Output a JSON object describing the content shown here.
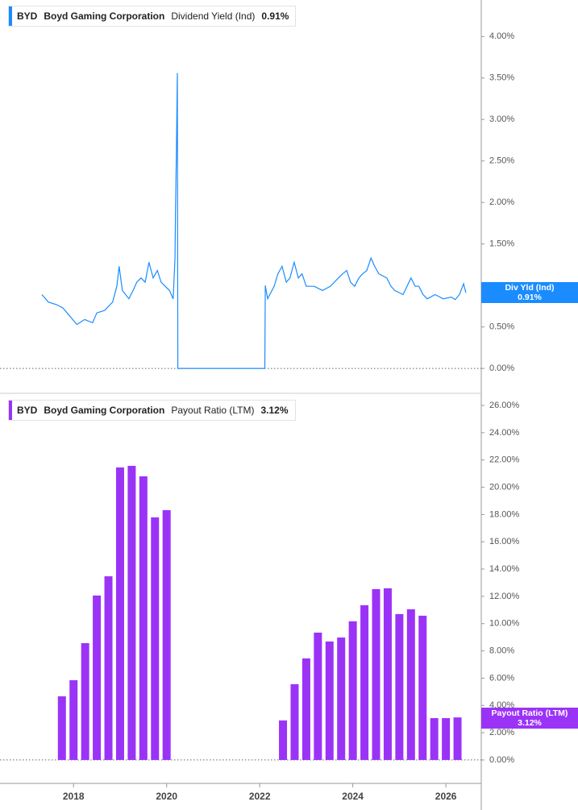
{
  "chart_data": [
    {
      "type": "line",
      "header": {
        "ticker": "BYD",
        "company": "Boyd Gaming Corporation",
        "metric": "Dividend Yield (Ind)",
        "value": "0.91%"
      },
      "badge": {
        "label": "Div Yld (Ind)",
        "value": "0.91%"
      },
      "color": "#1a8cff",
      "x": [
        2017.32,
        2017.46,
        2017.63,
        2017.77,
        2017.89,
        2018.07,
        2018.24,
        2018.41,
        2018.5,
        2018.67,
        2018.84,
        2018.93,
        2018.98,
        2019.05,
        2019.19,
        2019.28,
        2019.36,
        2019.45,
        2019.54,
        2019.62,
        2019.71,
        2019.8,
        2019.88,
        2019.97,
        2020.06,
        2020.14,
        2020.18,
        2020.19,
        2020.21,
        2020.23,
        2020.24,
        2022.11,
        2022.12,
        2022.17,
        2022.31,
        2022.39,
        2022.48,
        2022.57,
        2022.65,
        2022.74,
        2022.83,
        2022.91,
        2023.0,
        2023.17,
        2023.35,
        2023.52,
        2023.69,
        2023.78,
        2023.87,
        2023.95,
        2024.04,
        2024.13,
        2024.21,
        2024.3,
        2024.39,
        2024.47,
        2024.56,
        2024.73,
        2024.82,
        2024.9,
        2025.08,
        2025.25,
        2025.34,
        2025.42,
        2025.51,
        2025.6,
        2025.77,
        2025.94,
        2026.12,
        2026.2,
        2026.29,
        2026.38,
        2026.43
      ],
      "values": [
        0.89,
        0.8,
        0.77,
        0.73,
        0.65,
        0.53,
        0.59,
        0.55,
        0.67,
        0.7,
        0.8,
        0.99,
        1.23,
        0.94,
        0.84,
        0.94,
        1.04,
        1.09,
        1.04,
        1.28,
        1.09,
        1.18,
        1.04,
        0.99,
        0.94,
        0.84,
        1.33,
        1.91,
        2.59,
        3.56,
        0,
        0,
        1.0,
        0.84,
        0.99,
        1.14,
        1.23,
        1.04,
        1.09,
        1.28,
        1.09,
        1.14,
        0.99,
        0.99,
        0.94,
        0.99,
        1.09,
        1.14,
        1.18,
        1.04,
        0.99,
        1.09,
        1.14,
        1.18,
        1.33,
        1.23,
        1.14,
        1.09,
        0.99,
        0.94,
        0.89,
        1.09,
        0.99,
        0.99,
        0.89,
        0.84,
        0.89,
        0.84,
        0.86,
        0.83,
        0.89,
        1.02,
        0.91
      ],
      "xlim": [
        2016.42,
        2026.76
      ],
      "ylim": [
        -0.29,
        4.44
      ],
      "yticks": [
        {
          "value": 0,
          "label": "0.00%"
        },
        {
          "value": 0.5,
          "label": "0.50%"
        },
        {
          "value": 1.5,
          "label": "1.50%"
        },
        {
          "value": 2,
          "label": "2.00%"
        },
        {
          "value": 2.5,
          "label": "2.50%"
        },
        {
          "value": 3,
          "label": "3.00%"
        },
        {
          "value": 3.5,
          "label": "3.50%"
        },
        {
          "value": 4,
          "label": "4.00%"
        }
      ]
    },
    {
      "type": "bar",
      "header": {
        "ticker": "BYD",
        "company": "Boyd Gaming Corporation",
        "metric": "Payout Ratio (LTM)",
        "value": "3.12%"
      },
      "badge": {
        "label": "Payout Ratio (LTM)",
        "value": "3.12%"
      },
      "color": "#9b33f7",
      "x": [
        2017.75,
        2018.0,
        2018.25,
        2018.5,
        2018.75,
        2019.0,
        2019.25,
        2019.5,
        2019.75,
        2020.0,
        2022.5,
        2022.75,
        2023.0,
        2023.25,
        2023.5,
        2023.75,
        2024.0,
        2024.25,
        2024.5,
        2024.75,
        2025.0,
        2025.25,
        2025.5,
        2025.75,
        2026.0,
        2026.25
      ],
      "values": [
        4.67,
        5.85,
        8.57,
        12.06,
        13.47,
        21.45,
        21.57,
        20.8,
        17.79,
        18.32,
        2.9,
        5.56,
        7.45,
        9.34,
        8.69,
        8.98,
        10.17,
        11.35,
        12.53,
        12.59,
        10.7,
        11.05,
        10.58,
        3.07,
        3.07,
        3.12
      ],
      "xlim": [
        2016.42,
        2026.76
      ],
      "xticks": [
        2018,
        2020,
        2022,
        2024,
        2026
      ],
      "ylim": [
        -1.6,
        26.77
      ],
      "yticks": [
        {
          "value": 0,
          "label": "0.00%"
        },
        {
          "value": 2,
          "label": "2.00%"
        },
        {
          "value": 4,
          "label": "4.00%"
        },
        {
          "value": 6,
          "label": "6.00%"
        },
        {
          "value": 8,
          "label": "8.00%"
        },
        {
          "value": 10,
          "label": "10.00%"
        },
        {
          "value": 12,
          "label": "12.00%"
        },
        {
          "value": 14,
          "label": "14.00%"
        },
        {
          "value": 16,
          "label": "16.00%"
        },
        {
          "value": 18,
          "label": "18.00%"
        },
        {
          "value": 20,
          "label": "20.00%"
        },
        {
          "value": 22,
          "label": "22.00%"
        },
        {
          "value": 24,
          "label": "24.00%"
        },
        {
          "value": 26,
          "label": "26.00%"
        }
      ]
    }
  ]
}
